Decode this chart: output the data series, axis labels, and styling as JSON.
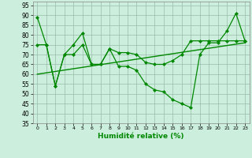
{
  "xlabel": "Humidité relative (%)",
  "xlim": [
    -0.5,
    23.5
  ],
  "ylim": [
    35,
    97
  ],
  "yticks": [
    35,
    40,
    45,
    50,
    55,
    60,
    65,
    70,
    75,
    80,
    85,
    90,
    95
  ],
  "xticks": [
    0,
    1,
    2,
    3,
    4,
    5,
    6,
    7,
    8,
    9,
    10,
    11,
    12,
    13,
    14,
    15,
    16,
    17,
    18,
    19,
    20,
    21,
    22,
    23
  ],
  "background_color": "#cceedd",
  "grid_color": "#99bbaa",
  "line_color": "#008800",
  "series1_x": [
    0,
    1,
    2,
    3,
    4,
    5,
    6,
    7,
    8,
    9,
    10,
    11,
    12,
    13,
    14,
    15,
    16,
    17,
    18,
    19,
    20,
    21,
    22,
    23
  ],
  "series1_y": [
    89,
    75,
    54,
    70,
    75,
    81,
    65,
    65,
    73,
    64,
    64,
    62,
    55,
    52,
    51,
    47,
    45,
    43,
    70,
    76,
    76,
    82,
    91,
    77
  ],
  "series2_x": [
    0,
    1,
    2,
    3,
    4,
    5,
    6,
    7,
    8,
    9,
    10,
    11,
    12,
    13,
    14,
    15,
    16,
    17,
    18,
    19,
    20,
    21,
    22,
    23
  ],
  "series2_y": [
    75,
    75,
    54,
    70,
    70,
    75,
    65,
    65,
    73,
    71,
    71,
    70,
    66,
    65,
    65,
    67,
    70,
    77,
    77,
    77,
    77,
    77,
    77,
    77
  ],
  "trend_x": [
    0,
    23
  ],
  "trend_y": [
    60,
    76
  ]
}
